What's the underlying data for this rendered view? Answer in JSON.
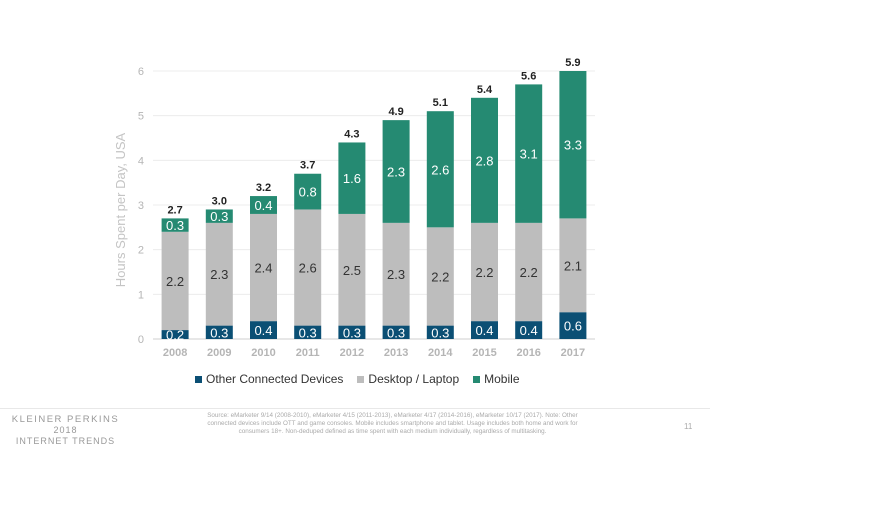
{
  "chart_data": {
    "type": "bar",
    "stacked": true,
    "title": "",
    "xlabel": "",
    "ylabel": "Hours Spent per Day, USA",
    "ylim": [
      0,
      6
    ],
    "yticks": [
      "0",
      "1",
      "2",
      "3",
      "4",
      "5",
      "6"
    ],
    "grid": true,
    "legend_position": "bottom",
    "categories": [
      "2008",
      "2009",
      "2010",
      "2011",
      "2012",
      "2013",
      "2014",
      "2015",
      "2016",
      "2017"
    ],
    "series": [
      {
        "name": "Other Connected Devices",
        "color": "#0b4f74",
        "values": [
          0.2,
          0.3,
          0.4,
          0.3,
          0.3,
          0.3,
          0.3,
          0.4,
          0.4,
          0.6
        ]
      },
      {
        "name": "Desktop / Laptop",
        "color": "#bdbdbd",
        "values": [
          2.2,
          2.3,
          2.4,
          2.6,
          2.5,
          2.3,
          2.2,
          2.2,
          2.2,
          2.1
        ]
      },
      {
        "name": "Mobile",
        "color": "#258a72",
        "values": [
          0.3,
          0.3,
          0.4,
          0.8,
          1.6,
          2.3,
          2.6,
          2.8,
          3.1,
          3.3
        ]
      }
    ],
    "totals": [
      "2.7",
      "3.0",
      "3.2",
      "3.7",
      "4.3",
      "4.9",
      "5.1",
      "5.4",
      "5.6",
      "5.9"
    ]
  },
  "footer": {
    "brand_line1": "KLEINER PERKINS",
    "brand_line2": "2018",
    "brand_line3": "INTERNET TRENDS",
    "source": "Source: eMarketer 9/14 (2008-2010), eMarketer 4/15 (2011-2013), eMarketer 4/17 (2014-2016), eMarketer 10/17 (2017). Note: Other connected devices include OTT and game consoles. Mobile includes smartphone and tablet. Usage includes both home and work for consumers 18+. Non-deduped defined as time spent with each medium individually, regardless of multitasking.",
    "page_number": "11"
  }
}
